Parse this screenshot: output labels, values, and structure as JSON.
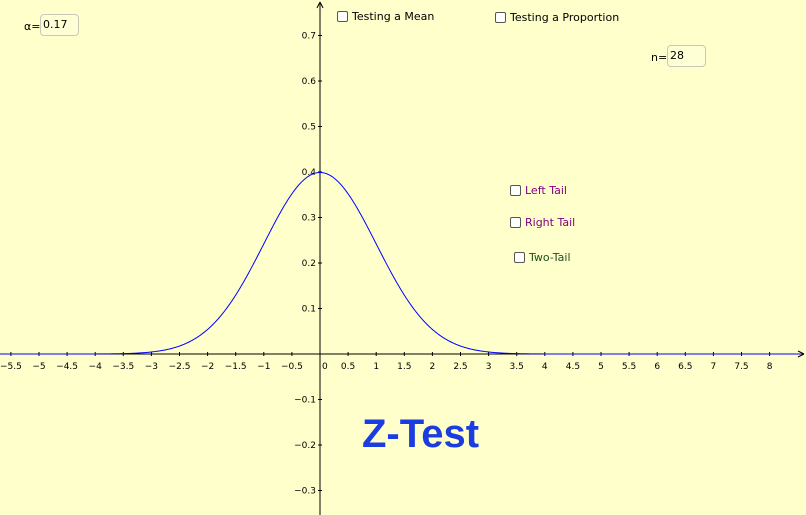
{
  "alpha": {
    "label": "α=",
    "value": "0.17"
  },
  "sample_size": {
    "label": "n=",
    "value": "28"
  },
  "test_options": [
    {
      "label": "Testing a Mean",
      "checked": false
    },
    {
      "label": "Testing a Proportion",
      "checked": false
    }
  ],
  "tail_options": [
    {
      "label": "Left Tail",
      "checked": false,
      "color": "#800080"
    },
    {
      "label": "Right Tail",
      "checked": false,
      "color": "#800080"
    },
    {
      "label": "Two-Tail",
      "checked": false,
      "color": "#1f4f1f"
    }
  ],
  "title": "Z-Test",
  "colors": {
    "background": "#ffffcc",
    "curve": "#0000ff",
    "title": "#1a3ce0"
  },
  "chart_data": {
    "type": "line",
    "function": "standard normal density",
    "x_ticks": [
      "-5.5",
      "-5",
      "-4.5",
      "-4",
      "-3.5",
      "-3",
      "-2.5",
      "-2",
      "-1.5",
      "-1",
      "-0.5",
      "0.5",
      "1",
      "1.5",
      "2",
      "2.5",
      "3",
      "3.5",
      "4",
      "4.5",
      "5",
      "5.5",
      "6",
      "6.5",
      "7",
      "7.5",
      "8"
    ],
    "y_ticks": [
      "0.7",
      "0.6",
      "0.5",
      "0.4",
      "0.3",
      "0.2",
      "0.1",
      "-0.1",
      "-0.2",
      "-0.3"
    ],
    "origin_label": "0",
    "xlim": [
      -5.7,
      8.8
    ],
    "ylim": [
      -0.35,
      0.78
    ],
    "peak": {
      "x": 0,
      "y": 0.399
    }
  }
}
